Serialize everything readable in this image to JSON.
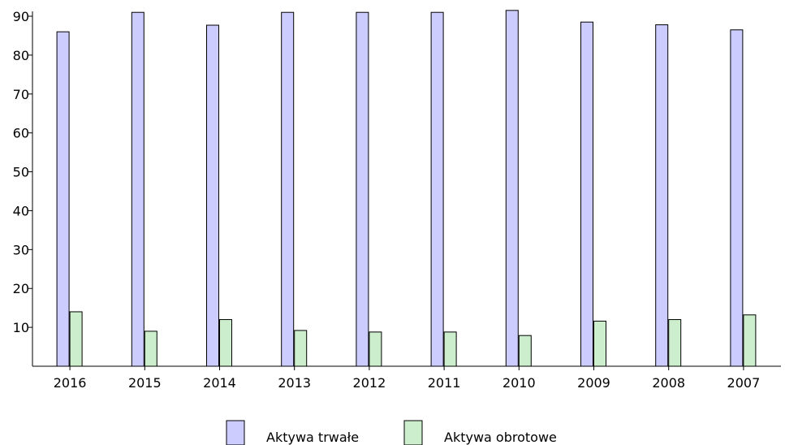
{
  "chart_data": {
    "type": "bar",
    "categories": [
      "2016",
      "2015",
      "2014",
      "2013",
      "2012",
      "2011",
      "2010",
      "2009",
      "2008",
      "2007"
    ],
    "series": [
      {
        "name": "Aktywa trwałe",
        "color": "#ccccff",
        "values": [
          86,
          91,
          87.7,
          91,
          91,
          91,
          91.5,
          88.5,
          87.8,
          86.5
        ]
      },
      {
        "name": "Aktywa obrotowe",
        "color": "#cceecc",
        "values": [
          14,
          9,
          12,
          9.2,
          8.8,
          8.8,
          7.9,
          11.6,
          12,
          13.2
        ]
      }
    ],
    "y_ticks": [
      10,
      20,
      30,
      40,
      50,
      60,
      70,
      80,
      90
    ],
    "ylim": [
      0,
      90
    ],
    "legend_position": "bottom-center",
    "grid": false
  }
}
